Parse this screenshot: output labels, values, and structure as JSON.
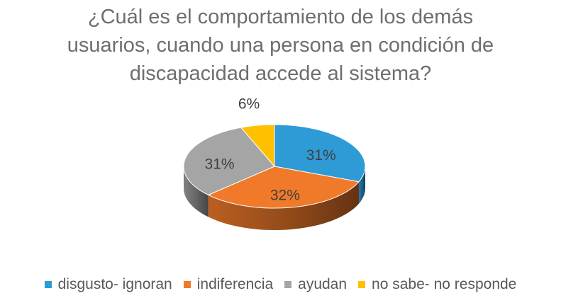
{
  "chart_data": {
    "type": "pie",
    "style": "3d",
    "title_lines": [
      "¿Cuál es el comportamiento de los demás",
      "usuarios, cuando una persona en condición de",
      "discapacidad accede al sistema?"
    ],
    "categories": [
      "disgusto- ignoran",
      "indiferencia",
      "ayudan",
      "no sabe- no responde"
    ],
    "values": [
      31,
      32,
      31,
      6
    ],
    "labels": [
      "31%",
      "32%",
      "31%",
      "6%"
    ],
    "colors": [
      "#2e9bd6",
      "#f07a2a",
      "#a5a5a5",
      "#ffc000"
    ],
    "legend_position": "bottom"
  }
}
